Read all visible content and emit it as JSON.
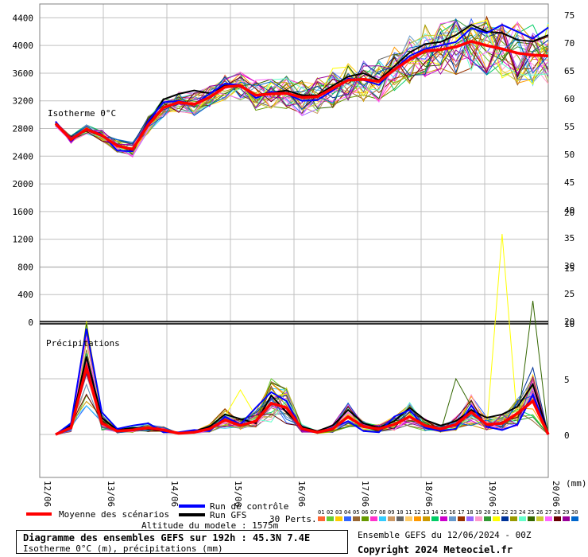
{
  "chart_data": {
    "type": "line",
    "title": "Diagramme des ensembles GEFS sur 192h : 45.3N 7.4E",
    "subtitle": "Isotherme 0°C (m), précipitations (mm)",
    "panels": {
      "isotherm_label": "Isotherme 0°C",
      "precip_label": "Précipitations"
    },
    "left_axis": {
      "ticks": [
        "4400",
        "4000",
        "3600",
        "3200",
        "2800",
        "2400",
        "2000",
        "1600",
        "1200",
        "800",
        "400",
        "0"
      ],
      "range": [
        0,
        4600
      ]
    },
    "right_axis_iso": {
      "ticks": [
        "75",
        "70",
        "65",
        "60",
        "55",
        "50",
        "45",
        "40",
        "35",
        "30",
        "25",
        "20"
      ]
    },
    "right_axis_precip": {
      "ticks": [
        "20",
        "15",
        "10",
        "5",
        "0"
      ],
      "range": [
        -7,
        20
      ]
    },
    "x_ticks": [
      "12/06",
      "13/06",
      "14/06",
      "15/06",
      "16/06",
      "17/06",
      "18/06",
      "19/06",
      "20/06"
    ],
    "x_unit": "(mm)",
    "x": [
      0,
      1,
      2,
      3,
      4,
      5,
      6,
      7,
      8,
      9,
      10,
      11,
      12,
      13,
      14,
      15,
      16,
      17,
      18,
      19,
      20,
      21,
      22,
      23,
      24,
      25,
      26,
      27,
      28,
      29,
      30,
      31,
      32
    ],
    "series": [
      {
        "name": "Moyenne des scénarios",
        "color": "#ff0000",
        "iso_values": [
          2870,
          2640,
          2790,
          2700,
          2550,
          2500,
          2850,
          3100,
          3180,
          3150,
          3250,
          3400,
          3420,
          3280,
          3300,
          3310,
          3250,
          3260,
          3380,
          3500,
          3510,
          3480,
          3650,
          3800,
          3920,
          3940,
          3980,
          4060,
          4000,
          3950,
          3890,
          3860,
          3850
        ],
        "precip_values": [
          0,
          0.6,
          6.0,
          1.0,
          0.3,
          0.4,
          0.6,
          0.4,
          0.1,
          0.2,
          0.5,
          1.3,
          0.8,
          1.2,
          2.8,
          2.4,
          0.5,
          0.2,
          0.5,
          1.6,
          0.7,
          0.5,
          0.9,
          1.6,
          0.8,
          0.5,
          0.9,
          2.0,
          0.9,
          1.0,
          1.9,
          3.0,
          0
        ]
      },
      {
        "name": "Run de contrôle",
        "color": "#0000ff",
        "iso_values": [
          2900,
          2620,
          2790,
          2720,
          2480,
          2470,
          2900,
          3180,
          3200,
          3150,
          3300,
          3450,
          3430,
          3240,
          3330,
          3300,
          3200,
          3210,
          3350,
          3520,
          3500,
          3430,
          3660,
          3850,
          3950,
          4000,
          4050,
          4250,
          4180,
          4300,
          4200,
          4100,
          4260
        ],
        "precip_values": [
          0,
          1.0,
          9.5,
          2.0,
          0.5,
          0.8,
          1.0,
          0.2,
          0.2,
          0.4,
          0.3,
          1.6,
          0.9,
          2.4,
          3.8,
          3.0,
          0.4,
          0.2,
          0.6,
          1.2,
          0.3,
          0.2,
          1.6,
          2.2,
          0.6,
          0.3,
          0.5,
          2.6,
          0.7,
          0.4,
          0.9,
          3.6,
          0
        ]
      },
      {
        "name": "Run GFS",
        "color": "#000000",
        "iso_values": [
          2880,
          2650,
          2780,
          2690,
          2560,
          2480,
          2870,
          3220,
          3300,
          3350,
          3310,
          3420,
          3410,
          3280,
          3320,
          3350,
          3280,
          3280,
          3420,
          3550,
          3600,
          3500,
          3700,
          3900,
          4020,
          4050,
          4150,
          4300,
          4200,
          4180,
          4080,
          4060,
          4150
        ],
        "precip_values": [
          0,
          0.8,
          7.0,
          1.5,
          0.4,
          0.6,
          0.5,
          0.3,
          0.1,
          0.3,
          0.7,
          1.8,
          1.4,
          1.0,
          3.5,
          2.0,
          0.7,
          0.3,
          0.8,
          2.2,
          1.0,
          0.6,
          1.2,
          2.4,
          1.3,
          0.8,
          1.2,
          2.2,
          1.5,
          1.8,
          2.5,
          4.5,
          0
        ]
      }
    ],
    "perturbations": {
      "label": "30 Perts.",
      "count": 30,
      "numbers": [
        "01",
        "02",
        "03",
        "04",
        "05",
        "06",
        "07",
        "08",
        "09",
        "10",
        "11",
        "12",
        "13",
        "14",
        "15",
        "16",
        "17",
        "18",
        "19",
        "20",
        "21",
        "22",
        "23",
        "24",
        "25",
        "26",
        "27",
        "28",
        "29",
        "30"
      ],
      "colors": [
        "#ff6633",
        "#66cc33",
        "#ffcc00",
        "#3366ff",
        "#996633",
        "#669900",
        "#ff33cc",
        "#33ccff",
        "#cc9966",
        "#666666",
        "#ffcc66",
        "#ff9900",
        "#cc9900",
        "#00cc66",
        "#cc00cc",
        "#6699cc",
        "#993300",
        "#9966ff",
        "#ff99cc",
        "#339933",
        "#ffff00",
        "#003399",
        "#999900",
        "#66ffcc",
        "#336600",
        "#cccc33",
        "#ff66ff",
        "#660000",
        "#990099",
        "#0066cc"
      ]
    },
    "grid": true
  },
  "legend": {
    "mean_label": "Moyenne des scénarios",
    "control_label": "Run de contrôle",
    "gfs_label": "Run GFS",
    "perts_label": "30 Perts.",
    "altitude": "Altitude du modele : 1575m",
    "ensemble_info": "Ensemble GEFS du 12/06/2024 - 00Z",
    "copyright": "Copyright 2024 Meteociel.fr",
    "title": "Diagramme des ensembles GEFS sur 192h : 45.3N 7.4E",
    "subtitle": "Isotherme 0°C (m), précipitations (mm)"
  }
}
